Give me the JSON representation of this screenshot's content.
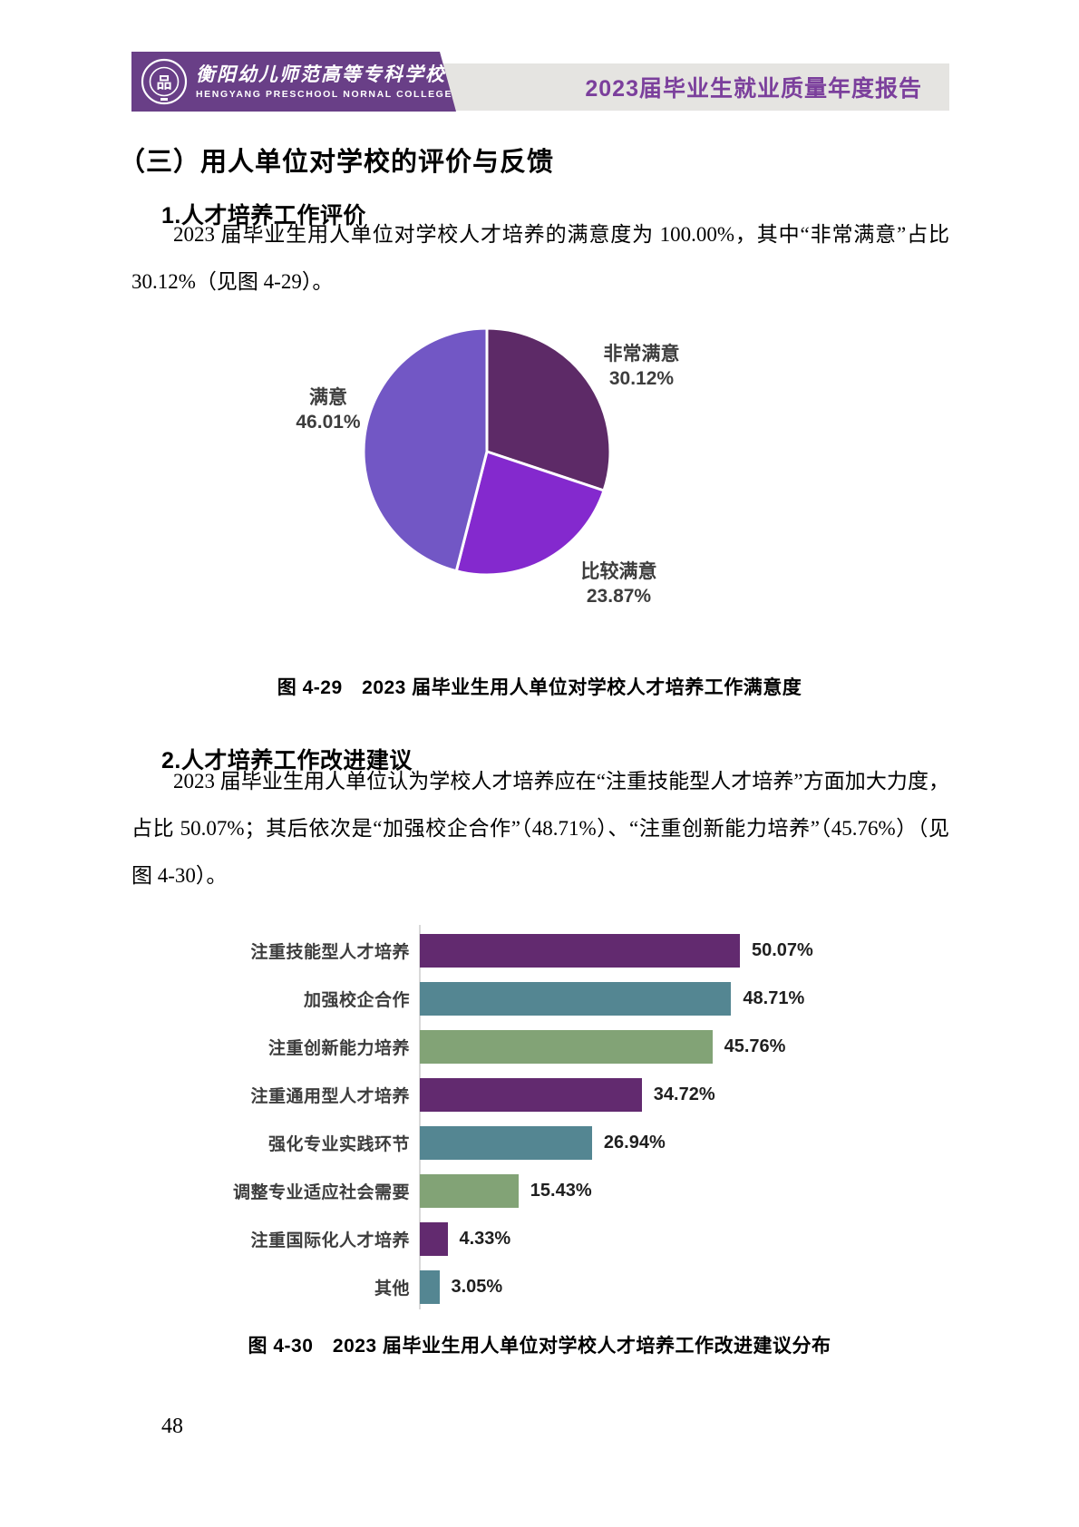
{
  "page": {
    "number": "48"
  },
  "header": {
    "college_name_zh": "衡阳幼儿师范高等专科学校",
    "college_name_en": "HENGYANG PRESCHOOL NORNAL COLLEGE",
    "report_title": "2023届毕业生就业质量年度报告",
    "colors": {
      "banner_purple": "#693f87",
      "band_gray": "#e5e4e1",
      "title_purple": "#7b3f9c"
    }
  },
  "section": {
    "heading": "（三）用人单位对学校的评价与反馈",
    "sub1": {
      "heading": "1.人才培养工作评价",
      "paragraph": "2023 届毕业生用人单位对学校人才培养的满意度为 100.00%，其中“非常满意”占比 30.12%（见图 4-29）。"
    },
    "sub2": {
      "heading": "2.人才培养工作改进建议",
      "paragraph": "2023 届毕业生用人单位认为学校人才培养应在“注重技能型人才培养”方面加大力度，占比 50.07%；其后依次是“加强校企合作”（48.71%）、“注重创新能力培养”（45.76%）（见图 4-30）。"
    }
  },
  "chart_data": [
    {
      "id": "figure-4-29",
      "type": "pie",
      "caption": "图 4-29　2023 届毕业生用人单位对学校人才培养工作满意度",
      "start_angle": "top",
      "direction": "clockwise",
      "legend_position": "outside-labels",
      "slices": [
        {
          "label": "非常满意",
          "value": 30.12,
          "display": "30.12%",
          "color": "#5d2a67"
        },
        {
          "label": "比较满意",
          "value": 23.87,
          "display": "23.87%",
          "color": "#8429ce"
        },
        {
          "label": "满意",
          "value": 46.01,
          "display": "46.01%",
          "color": "#7257c5"
        }
      ]
    },
    {
      "id": "figure-4-30",
      "type": "bar",
      "orientation": "horizontal",
      "caption": "图 4-30　2023 届毕业生用人单位对学校人才培养工作改进建议分布",
      "categories": [
        "注重技能型人才培养",
        "加强校企合作",
        "注重创新能力培养",
        "注重通用型人才培养",
        "强化专业实践环节",
        "调整专业适应社会需要",
        "注重国际化人才培养",
        "其他"
      ],
      "values": [
        50.07,
        48.71,
        45.76,
        34.72,
        26.94,
        15.43,
        4.33,
        3.05
      ],
      "displays": [
        "50.07%",
        "48.71%",
        "45.76%",
        "34.72%",
        "26.94%",
        "15.43%",
        "4.33%",
        "3.05%"
      ],
      "bar_color_cycle": [
        "#622a6f",
        "#548692",
        "#82a376"
      ],
      "xlim": [
        0,
        55
      ],
      "grid": false,
      "value_labels": "end-of-bar"
    }
  ]
}
